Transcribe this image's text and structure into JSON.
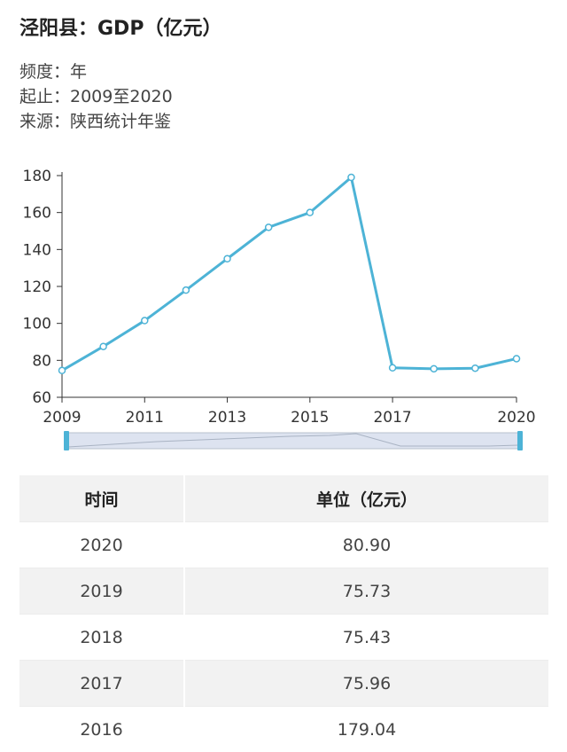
{
  "title": "泾阳县：GDP（亿元）",
  "meta": {
    "frequency": "频度：年",
    "range": "起止：2009至2020",
    "source": "来源：陕西统计年鉴"
  },
  "chart_data": {
    "type": "line",
    "x": [
      2009,
      2010,
      2011,
      2012,
      2013,
      2014,
      2015,
      2016,
      2017,
      2018,
      2019,
      2020
    ],
    "series": [
      {
        "values": [
          74.5,
          87.5,
          101.5,
          118,
          135,
          152,
          160,
          179.04,
          75.96,
          75.43,
          75.73,
          80.9
        ]
      }
    ],
    "xticks": [
      "2009",
      "2011",
      "2013",
      "2015",
      "2017",
      "2020"
    ],
    "yticks": [
      60,
      80,
      100,
      120,
      140,
      160,
      180
    ],
    "xlim": [
      2009,
      2020
    ],
    "ylim": [
      60,
      180
    ],
    "grid": false,
    "line_color": "#4db3d6"
  },
  "table": {
    "headers": [
      "时间",
      "单位（亿元）"
    ],
    "rows": [
      [
        "2020",
        "80.90"
      ],
      [
        "2019",
        "75.73"
      ],
      [
        "2018",
        "75.43"
      ],
      [
        "2017",
        "75.96"
      ],
      [
        "2016",
        "179.04"
      ]
    ]
  }
}
